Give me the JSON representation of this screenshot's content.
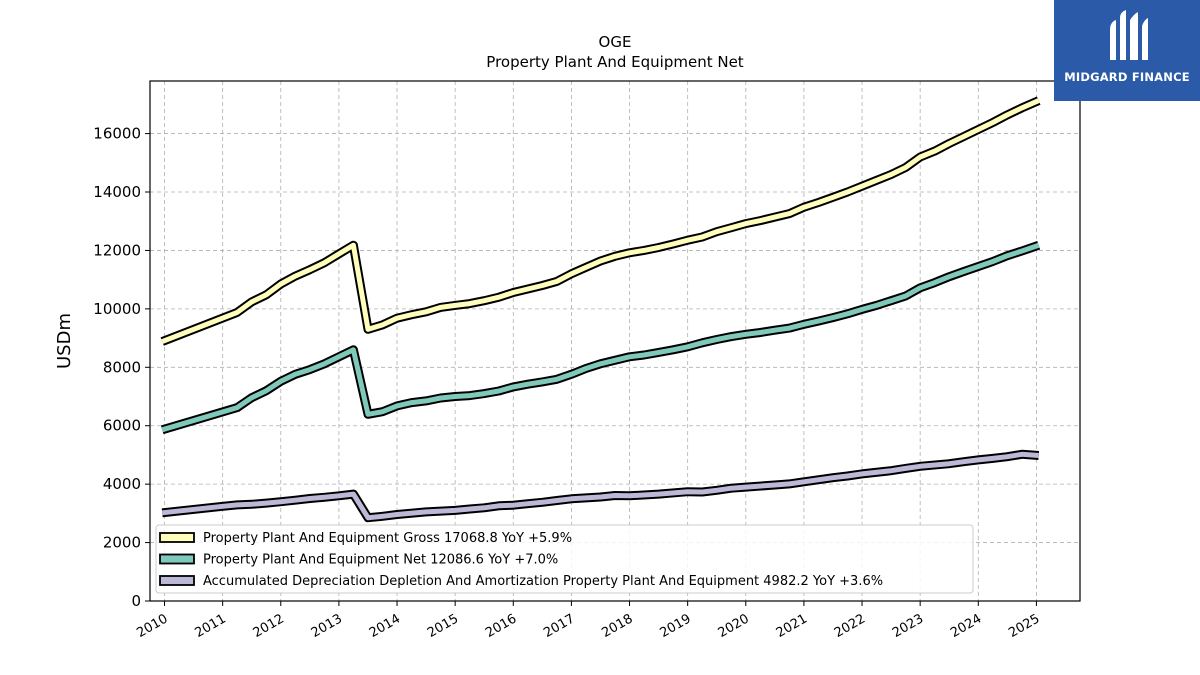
{
  "brand": {
    "name": "MIDGARD FINANCE",
    "bg_color": "#2a5aa8"
  },
  "chart_data": {
    "type": "line",
    "title": "OGE",
    "subtitle": "Property Plant And Equipment Net",
    "xlabel": "",
    "ylabel": "USDm",
    "xlim": [
      2009.75,
      2025.75
    ],
    "ylim": [
      0,
      17800
    ],
    "x_ticks": [
      "2010",
      "2011",
      "2012",
      "2013",
      "2014",
      "2015",
      "2016",
      "2017",
      "2018",
      "2019",
      "2020",
      "2021",
      "2022",
      "2023",
      "2024",
      "2025"
    ],
    "y_ticks": [
      0,
      2000,
      4000,
      6000,
      8000,
      10000,
      12000,
      14000,
      16000
    ],
    "grid": true,
    "legend_position": "lower-left",
    "series": [
      {
        "name": "Property Plant And Equipment Gross  17068.8 YoY +5.9%",
        "color": "#ffffbb",
        "points": [
          [
            2009.96,
            8880
          ],
          [
            2011.25,
            9880
          ],
          [
            2011.5,
            10240
          ],
          [
            2011.75,
            10480
          ],
          [
            2012.0,
            10850
          ],
          [
            2012.25,
            11120
          ],
          [
            2012.5,
            11340
          ],
          [
            2012.75,
            11580
          ],
          [
            2013.0,
            11880
          ],
          [
            2013.25,
            12180
          ],
          [
            2013.5,
            9300
          ],
          [
            2013.75,
            9450
          ],
          [
            2014.0,
            9680
          ],
          [
            2014.25,
            9800
          ],
          [
            2014.5,
            9900
          ],
          [
            2014.75,
            10050
          ],
          [
            2015.0,
            10120
          ],
          [
            2015.25,
            10180
          ],
          [
            2015.5,
            10280
          ],
          [
            2015.75,
            10400
          ],
          [
            2016.0,
            10560
          ],
          [
            2016.25,
            10680
          ],
          [
            2016.5,
            10800
          ],
          [
            2016.75,
            10940
          ],
          [
            2017.0,
            11200
          ],
          [
            2017.25,
            11420
          ],
          [
            2017.5,
            11640
          ],
          [
            2017.75,
            11800
          ],
          [
            2018.0,
            11920
          ],
          [
            2018.25,
            12000
          ],
          [
            2018.5,
            12100
          ],
          [
            2018.75,
            12220
          ],
          [
            2019.0,
            12350
          ],
          [
            2019.25,
            12460
          ],
          [
            2019.5,
            12640
          ],
          [
            2019.75,
            12780
          ],
          [
            2020.0,
            12920
          ],
          [
            2020.25,
            13020
          ],
          [
            2020.5,
            13140
          ],
          [
            2020.75,
            13260
          ],
          [
            2021.0,
            13480
          ],
          [
            2021.25,
            13640
          ],
          [
            2021.5,
            13820
          ],
          [
            2021.75,
            14000
          ],
          [
            2022.0,
            14200
          ],
          [
            2022.25,
            14400
          ],
          [
            2022.5,
            14600
          ],
          [
            2022.75,
            14840
          ],
          [
            2023.0,
            15200
          ],
          [
            2023.25,
            15400
          ],
          [
            2023.5,
            15660
          ],
          [
            2023.75,
            15900
          ],
          [
            2024.0,
            16140
          ],
          [
            2024.25,
            16380
          ],
          [
            2024.5,
            16640
          ],
          [
            2024.75,
            16880
          ],
          [
            2025.04,
            17130
          ]
        ]
      },
      {
        "name": "Property Plant And Equipment Net  12086.6 YoY +7.0%",
        "color": "#7fc9ba",
        "points": [
          [
            2009.96,
            5860
          ],
          [
            2011.25,
            6620
          ],
          [
            2011.5,
            6960
          ],
          [
            2011.75,
            7200
          ],
          [
            2012.0,
            7520
          ],
          [
            2012.25,
            7760
          ],
          [
            2012.5,
            7920
          ],
          [
            2012.75,
            8120
          ],
          [
            2013.0,
            8360
          ],
          [
            2013.25,
            8600
          ],
          [
            2013.5,
            6390
          ],
          [
            2013.75,
            6480
          ],
          [
            2014.0,
            6680
          ],
          [
            2014.25,
            6790
          ],
          [
            2014.5,
            6850
          ],
          [
            2014.75,
            6950
          ],
          [
            2015.0,
            7000
          ],
          [
            2015.25,
            7030
          ],
          [
            2015.5,
            7100
          ],
          [
            2015.75,
            7190
          ],
          [
            2016.0,
            7330
          ],
          [
            2016.25,
            7420
          ],
          [
            2016.5,
            7500
          ],
          [
            2016.75,
            7590
          ],
          [
            2017.0,
            7760
          ],
          [
            2017.25,
            7960
          ],
          [
            2017.5,
            8120
          ],
          [
            2017.75,
            8240
          ],
          [
            2018.0,
            8360
          ],
          [
            2018.25,
            8420
          ],
          [
            2018.5,
            8510
          ],
          [
            2018.75,
            8600
          ],
          [
            2019.0,
            8700
          ],
          [
            2019.25,
            8840
          ],
          [
            2019.5,
            8950
          ],
          [
            2019.75,
            9050
          ],
          [
            2020.0,
            9130
          ],
          [
            2020.25,
            9190
          ],
          [
            2020.5,
            9270
          ],
          [
            2020.75,
            9340
          ],
          [
            2021.0,
            9470
          ],
          [
            2021.25,
            9580
          ],
          [
            2021.5,
            9700
          ],
          [
            2021.75,
            9830
          ],
          [
            2022.0,
            9980
          ],
          [
            2022.25,
            10120
          ],
          [
            2022.5,
            10280
          ],
          [
            2022.75,
            10440
          ],
          [
            2023.0,
            10720
          ],
          [
            2023.25,
            10900
          ],
          [
            2023.5,
            11100
          ],
          [
            2023.75,
            11280
          ],
          [
            2024.0,
            11450
          ],
          [
            2024.25,
            11620
          ],
          [
            2024.5,
            11820
          ],
          [
            2024.75,
            11980
          ],
          [
            2025.04,
            12180
          ]
        ]
      },
      {
        "name": "Accumulated Depreciation Depletion And Amortization Property Plant And Equipment  4982.2 YoY +3.6%",
        "color": "#bcb8d8",
        "points": [
          [
            2009.96,
            3020
          ],
          [
            2011.0,
            3240
          ],
          [
            2011.25,
            3290
          ],
          [
            2011.5,
            3310
          ],
          [
            2011.75,
            3350
          ],
          [
            2012.0,
            3400
          ],
          [
            2012.25,
            3450
          ],
          [
            2012.5,
            3510
          ],
          [
            2012.75,
            3550
          ],
          [
            2013.0,
            3600
          ],
          [
            2013.25,
            3660
          ],
          [
            2013.5,
            2850
          ],
          [
            2013.75,
            2900
          ],
          [
            2014.0,
            2960
          ],
          [
            2014.5,
            3050
          ],
          [
            2015.0,
            3100
          ],
          [
            2015.25,
            3150
          ],
          [
            2015.5,
            3190
          ],
          [
            2015.75,
            3260
          ],
          [
            2016.0,
            3280
          ],
          [
            2016.25,
            3330
          ],
          [
            2016.5,
            3380
          ],
          [
            2016.75,
            3440
          ],
          [
            2017.0,
            3500
          ],
          [
            2017.5,
            3560
          ],
          [
            2017.75,
            3610
          ],
          [
            2018.0,
            3600
          ],
          [
            2018.5,
            3660
          ],
          [
            2019.0,
            3740
          ],
          [
            2019.25,
            3730
          ],
          [
            2019.5,
            3790
          ],
          [
            2019.75,
            3860
          ],
          [
            2020.0,
            3900
          ],
          [
            2020.5,
            3970
          ],
          [
            2020.75,
            4010
          ],
          [
            2021.0,
            4080
          ],
          [
            2021.5,
            4220
          ],
          [
            2021.75,
            4280
          ],
          [
            2022.0,
            4350
          ],
          [
            2022.5,
            4460
          ],
          [
            2022.75,
            4540
          ],
          [
            2023.0,
            4610
          ],
          [
            2023.5,
            4700
          ],
          [
            2023.75,
            4770
          ],
          [
            2024.0,
            4830
          ],
          [
            2024.25,
            4880
          ],
          [
            2024.5,
            4940
          ],
          [
            2024.75,
            5020
          ],
          [
            2025.04,
            4980
          ]
        ]
      }
    ]
  }
}
